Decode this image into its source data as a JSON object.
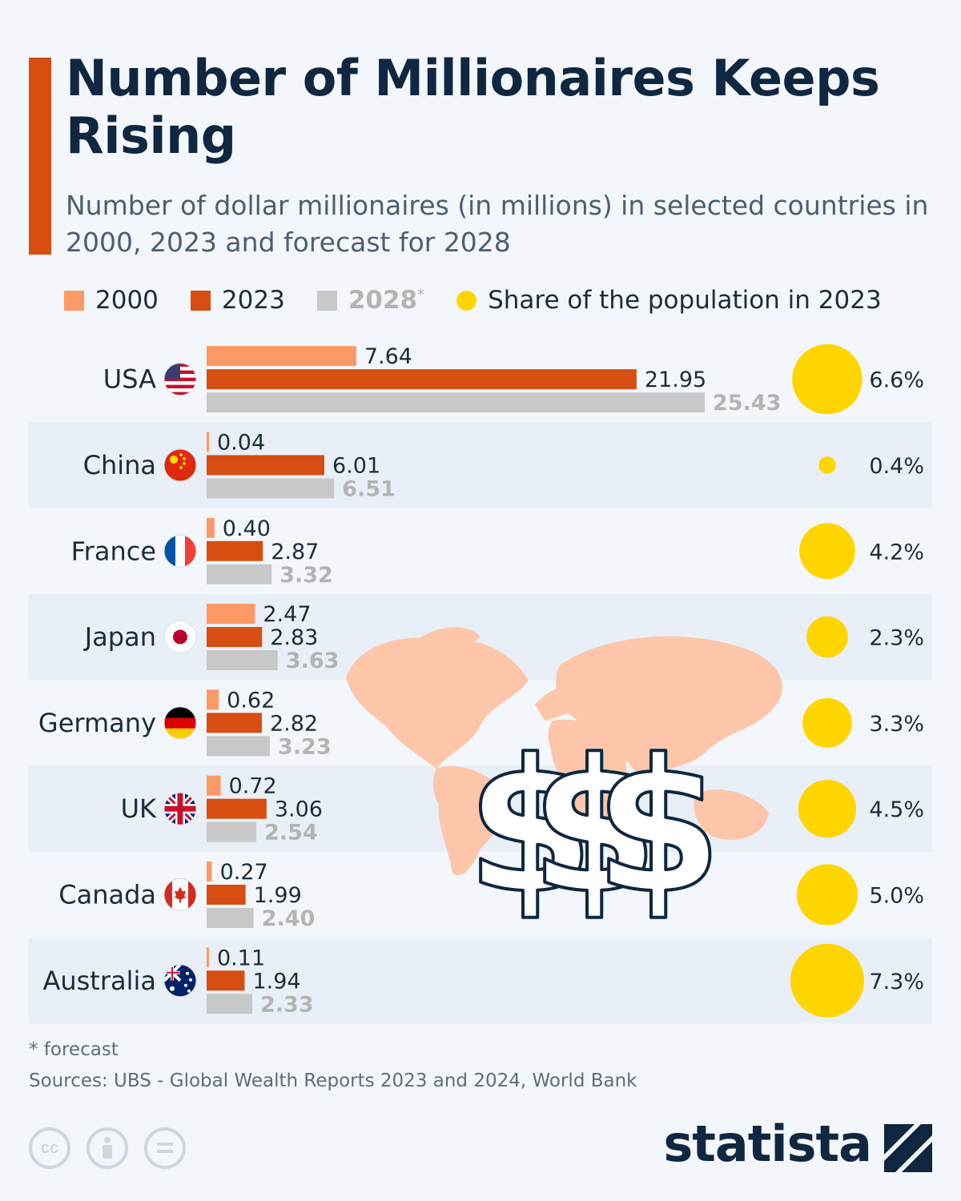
{
  "title": "Number of Millionaires Keeps Rising",
  "subtitle": "Number of dollar millionaires (in millions) in selected countries in 2000, 2023 and forecast for 2028",
  "legend": {
    "y2000": "2000",
    "y2023": "2023",
    "y2028": "2028",
    "y2028_mark": "*",
    "share": "Share of the population in 2023"
  },
  "colors": {
    "y2000": "#fb9a66",
    "y2023": "#d64e12",
    "y2028": "#c8c8c8",
    "share": "#ffd500",
    "accent": "#d64e12",
    "navy": "#0f2740"
  },
  "chart_data": {
    "type": "bar",
    "orientation": "horizontal",
    "categories": [
      "USA",
      "China",
      "France",
      "Japan",
      "Germany",
      "UK",
      "Canada",
      "Australia"
    ],
    "series": [
      {
        "name": "2000",
        "values": [
          7.64,
          0.04,
          0.4,
          2.47,
          0.62,
          0.72,
          0.27,
          0.11
        ],
        "labels": [
          "7.64",
          "0.04",
          "0.40",
          "2.47",
          "0.62",
          "0.72",
          "0.27",
          "0.11"
        ]
      },
      {
        "name": "2023",
        "values": [
          21.95,
          6.01,
          2.87,
          2.83,
          2.82,
          3.06,
          1.99,
          1.94
        ],
        "labels": [
          "21.95",
          "6.01",
          "2.87",
          "2.83",
          "2.82",
          "3.06",
          "1.99",
          "1.94"
        ]
      },
      {
        "name": "2028*",
        "values": [
          25.43,
          6.51,
          3.32,
          3.63,
          3.23,
          2.54,
          2.4,
          2.33
        ],
        "labels": [
          "25.43",
          "6.51",
          "3.32",
          "3.63",
          "3.23",
          "2.54",
          "2.40",
          "2.33"
        ]
      }
    ],
    "share_of_population_2023": {
      "name": "Share of the population in 2023",
      "values": [
        6.6,
        0.4,
        4.2,
        2.3,
        3.3,
        4.5,
        5.0,
        7.3
      ],
      "labels": [
        "6.6%",
        "0.4%",
        "4.2%",
        "2.3%",
        "3.3%",
        "4.5%",
        "5.0%",
        "7.3%"
      ]
    },
    "flags": [
      "us-flag-icon",
      "china-flag-icon",
      "france-flag-icon",
      "japan-flag-icon",
      "germany-flag-icon",
      "uk-flag-icon",
      "canada-flag-icon",
      "australia-flag-icon"
    ],
    "background_graphic": [
      "world-map-icon",
      "dollar-signs-icon"
    ],
    "xlim": [
      0,
      25.43
    ],
    "grid": false,
    "legend_position": "top"
  },
  "footnote": "* forecast",
  "source": "Sources: UBS - Global Wealth Reports 2023 and 2024, World Bank",
  "brand": "statista",
  "license_icons": [
    "cc-icon",
    "attribution-icon",
    "no-derivatives-icon"
  ]
}
